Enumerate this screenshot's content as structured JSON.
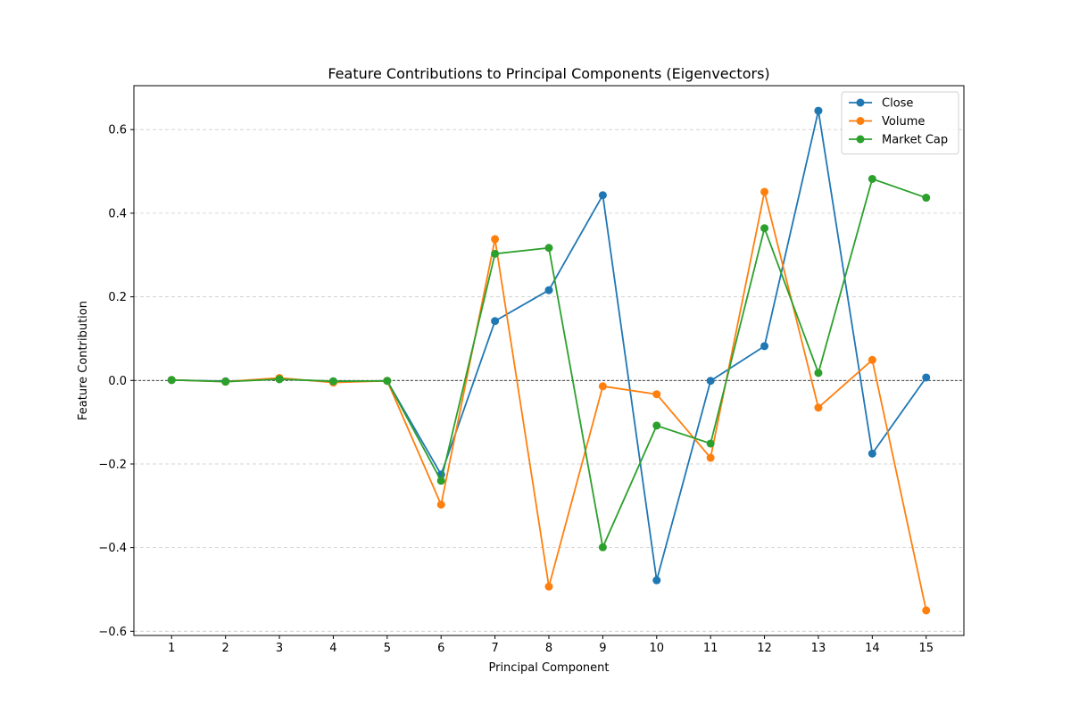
{
  "chart_data": {
    "type": "line",
    "title": "Feature Contributions to Principal Components (Eigenvectors)",
    "xlabel": "Principal Component",
    "ylabel": "Feature Contribution",
    "x": [
      1,
      2,
      3,
      4,
      5,
      6,
      7,
      8,
      9,
      10,
      11,
      12,
      13,
      14,
      15
    ],
    "xlim": [
      0.3,
      15.7
    ],
    "ylim": [
      -0.61,
      0.705
    ],
    "yticks": [
      -0.6,
      -0.4,
      -0.2,
      0.0,
      0.2,
      0.4,
      0.6
    ],
    "ytick_labels": [
      "−0.6",
      "−0.4",
      "−0.2",
      "0.0",
      "0.2",
      "0.4",
      "0.6"
    ],
    "grid": "y-axis dashed",
    "zero_line": true,
    "legend_position": "top-right",
    "series": [
      {
        "name": "Close",
        "color": "#1f77b4",
        "values": [
          0.001,
          -0.002,
          0.003,
          -0.002,
          -0.001,
          -0.225,
          0.142,
          0.216,
          0.443,
          -0.478,
          -0.001,
          0.082,
          0.645,
          -0.175,
          0.007
        ]
      },
      {
        "name": "Volume",
        "color": "#ff7f0e",
        "values": [
          0.001,
          -0.003,
          0.006,
          -0.005,
          -0.001,
          -0.297,
          0.338,
          -0.493,
          -0.014,
          -0.033,
          -0.185,
          0.451,
          -0.065,
          0.049,
          -0.55
        ]
      },
      {
        "name": "Market Cap",
        "color": "#2ca02c",
        "values": [
          0.001,
          -0.003,
          0.003,
          -0.002,
          -0.001,
          -0.24,
          0.303,
          0.317,
          -0.399,
          -0.108,
          -0.151,
          0.364,
          0.018,
          0.482,
          0.437
        ]
      }
    ]
  }
}
